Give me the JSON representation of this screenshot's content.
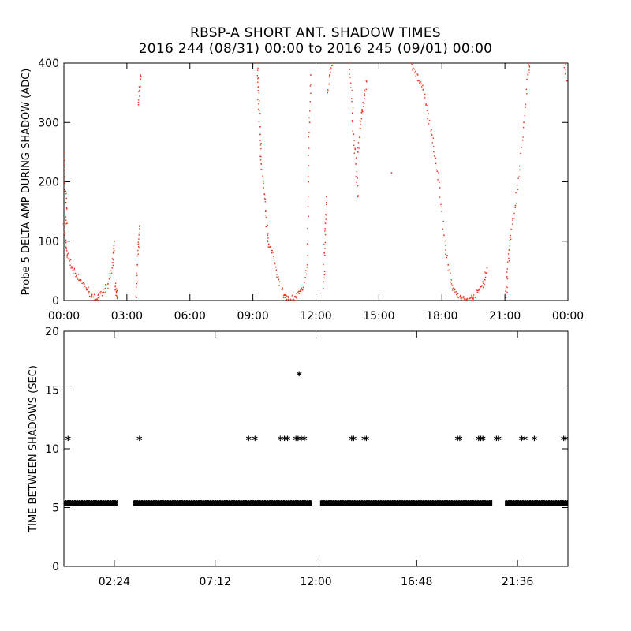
{
  "title": "RBSP-A SHORT ANT. SHADOW TIMES",
  "subtitle": "2016 244 (08/31) 00:00 to 2016 245 (09/01) 00:00",
  "chart_data": [
    {
      "type": "scatter",
      "ylabel": "Probe 5 DELTA AMP DURING SHADOW (ADC)",
      "xlabel": "",
      "xlim": [
        0,
        24
      ],
      "ylim": [
        0,
        400
      ],
      "xtick_values": [
        0,
        3,
        6,
        9,
        12,
        15,
        18,
        21,
        24
      ],
      "xticks": [
        "00:00",
        "03:00",
        "06:00",
        "09:00",
        "12:00",
        "15:00",
        "18:00",
        "21:00",
        "00:00"
      ],
      "ytick_values": [
        0,
        100,
        200,
        300,
        400
      ],
      "yticks": [
        "0",
        "100",
        "200",
        "300",
        "400"
      ],
      "marker_color": "#e8311a",
      "series": [
        {
          "name": "branch-00",
          "points": [
            [
              0.0,
              130
            ],
            [
              0.1,
              90
            ],
            [
              0.2,
              70
            ],
            [
              0.4,
              55
            ],
            [
              0.6,
              42
            ],
            [
              0.8,
              35
            ],
            [
              1.0,
              24
            ],
            [
              1.2,
              15
            ],
            [
              1.4,
              6
            ],
            [
              1.55,
              2
            ],
            [
              1.7,
              6
            ],
            [
              1.9,
              14
            ],
            [
              2.1,
              28
            ],
            [
              2.3,
              55
            ],
            [
              2.35,
              80
            ],
            [
              2.4,
              100
            ]
          ]
        },
        {
          "name": "branch-00b",
          "points": [
            [
              0.0,
              250
            ],
            [
              0.05,
              200
            ],
            [
              0.1,
              165
            ],
            [
              0.15,
              130
            ]
          ]
        },
        {
          "name": "branch-02",
          "points": [
            [
              2.45,
              25
            ],
            [
              2.5,
              15
            ],
            [
              2.55,
              5
            ]
          ]
        },
        {
          "name": "branch-03",
          "points": [
            [
              3.45,
              5
            ],
            [
              3.5,
              60
            ],
            [
              3.55,
              95
            ],
            [
              3.6,
              125
            ]
          ]
        },
        {
          "name": "branch-03b",
          "points": [
            [
              3.55,
              330
            ],
            [
              3.6,
              360
            ],
            [
              3.65,
              380
            ]
          ]
        },
        {
          "name": "branch-09",
          "points": [
            [
              9.2,
              400
            ],
            [
              9.25,
              360
            ],
            [
              9.3,
              320
            ],
            [
              9.35,
              270
            ],
            [
              9.4,
              230
            ],
            [
              9.5,
              190
            ],
            [
              9.6,
              150
            ],
            [
              9.7,
              110
            ],
            [
              9.8,
              90
            ],
            [
              10.0,
              70
            ],
            [
              10.2,
              40
            ],
            [
              10.4,
              18
            ],
            [
              10.55,
              5
            ],
            [
              10.7,
              2
            ]
          ]
        },
        {
          "name": "branch-10",
          "points": [
            [
              10.8,
              2
            ],
            [
              11.0,
              6
            ],
            [
              11.2,
              12
            ],
            [
              11.4,
              22
            ],
            [
              11.6,
              60
            ],
            [
              11.65,
              200
            ],
            [
              11.7,
              300
            ],
            [
              11.75,
              380
            ]
          ]
        },
        {
          "name": "branch-12",
          "points": [
            [
              12.35,
              20
            ],
            [
              12.4,
              80
            ],
            [
              12.45,
              130
            ],
            [
              12.5,
              175
            ]
          ]
        },
        {
          "name": "branch-12b",
          "points": [
            [
              12.55,
              350
            ],
            [
              12.65,
              380
            ],
            [
              12.8,
              400
            ]
          ]
        },
        {
          "name": "branch-14",
          "points": [
            [
              13.6,
              400
            ],
            [
              13.7,
              340
            ],
            [
              13.8,
              280
            ],
            [
              13.9,
              230
            ],
            [
              14.0,
              175
            ]
          ]
        },
        {
          "name": "branch-14b",
          "points": [
            [
              14.0,
              250
            ],
            [
              14.1,
              290
            ],
            [
              14.2,
              320
            ],
            [
              14.3,
              340
            ],
            [
              14.4,
              370
            ]
          ]
        },
        {
          "name": "branch-15",
          "points": [
            [
              15.6,
              215
            ]
          ]
        },
        {
          "name": "branch-17",
          "points": [
            [
              16.5,
              400
            ],
            [
              16.7,
              390
            ],
            [
              16.9,
              370
            ],
            [
              17.1,
              355
            ],
            [
              17.3,
              320
            ],
            [
              17.5,
              280
            ],
            [
              17.7,
              240
            ],
            [
              17.9,
              190
            ],
            [
              18.1,
              110
            ],
            [
              18.3,
              60
            ],
            [
              18.5,
              25
            ],
            [
              18.7,
              10
            ],
            [
              18.9,
              4
            ],
            [
              19.1,
              2
            ],
            [
              19.3,
              3
            ]
          ]
        },
        {
          "name": "branch-19",
          "points": [
            [
              19.35,
              4
            ],
            [
              19.5,
              6
            ],
            [
              19.7,
              14
            ],
            [
              19.9,
              25
            ],
            [
              20.05,
              35
            ],
            [
              20.15,
              55
            ]
          ]
        },
        {
          "name": "branch-21",
          "points": [
            [
              21.05,
              5
            ],
            [
              21.1,
              40
            ],
            [
              21.2,
              85
            ],
            [
              21.3,
              120
            ],
            [
              21.5,
              160
            ],
            [
              21.7,
              220
            ],
            [
              21.9,
              300
            ],
            [
              22.1,
              380
            ],
            [
              22.2,
              400
            ]
          ]
        },
        {
          "name": "branch-24",
          "points": [
            [
              23.85,
              400
            ],
            [
              23.95,
              370
            ]
          ]
        }
      ]
    },
    {
      "type": "scatter",
      "ylabel": "TIME BETWEEN SHADOWS (SEC)",
      "xlabel": "",
      "xlim": [
        0,
        24
      ],
      "ylim": [
        0,
        20
      ],
      "xtick_values": [
        2.4,
        7.2,
        12.0,
        16.8,
        21.6
      ],
      "xticks": [
        "02:24",
        "07:12",
        "12:00",
        "16:48",
        "21:36"
      ],
      "ytick_values": [
        0,
        5,
        10,
        15,
        20
      ],
      "yticks": [
        "0",
        "5",
        "10",
        "15",
        "20"
      ],
      "marker": "*",
      "baseline_value": 5.4,
      "baseline_segments": [
        [
          0.0,
          2.55
        ],
        [
          3.3,
          11.8
        ],
        [
          12.2,
          20.4
        ],
        [
          21.0,
          24.0
        ]
      ],
      "points": [
        [
          0.2,
          10.8
        ],
        [
          3.6,
          10.8
        ],
        [
          8.8,
          10.8
        ],
        [
          9.1,
          10.8
        ],
        [
          10.3,
          10.8
        ],
        [
          10.5,
          10.8
        ],
        [
          10.65,
          10.8
        ],
        [
          11.05,
          10.8
        ],
        [
          11.15,
          10.8
        ],
        [
          11.3,
          10.8
        ],
        [
          11.45,
          10.8
        ],
        [
          11.2,
          16.3
        ],
        [
          13.7,
          10.8
        ],
        [
          13.8,
          10.8
        ],
        [
          14.3,
          10.8
        ],
        [
          14.4,
          10.8
        ],
        [
          18.75,
          10.8
        ],
        [
          18.85,
          10.8
        ],
        [
          19.75,
          10.8
        ],
        [
          19.85,
          10.8
        ],
        [
          19.95,
          10.8
        ],
        [
          20.6,
          10.8
        ],
        [
          20.7,
          10.8
        ],
        [
          21.8,
          10.8
        ],
        [
          21.95,
          10.8
        ],
        [
          22.4,
          10.8
        ],
        [
          23.8,
          10.8
        ],
        [
          23.9,
          10.8
        ]
      ]
    }
  ]
}
